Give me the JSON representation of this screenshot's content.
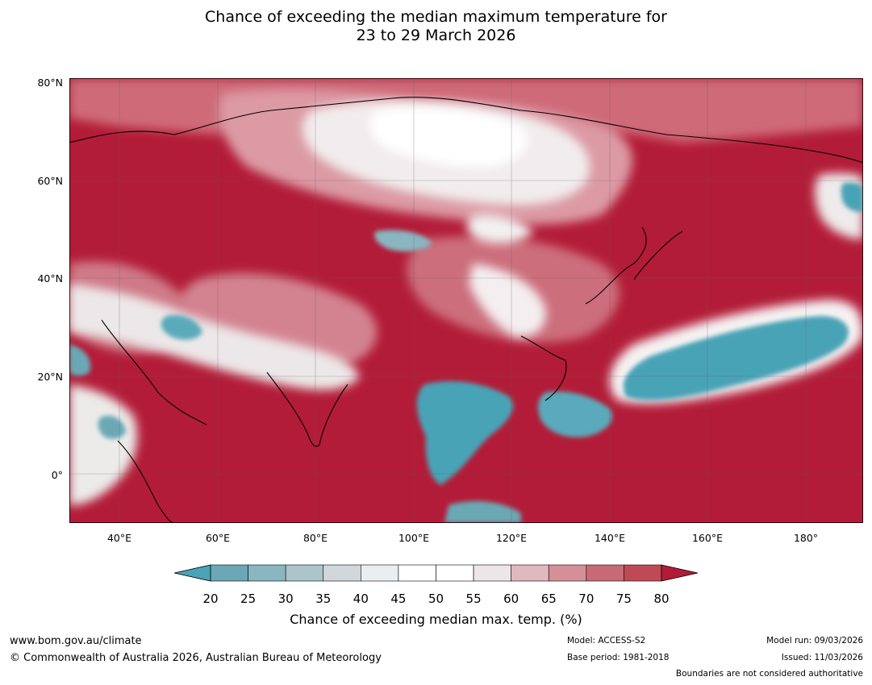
{
  "title": {
    "line1": "Chance of exceeding the median maximum temperature for",
    "line2": "23 to 29 March 2026"
  },
  "map": {
    "lat_labels": [
      "80°N",
      "60°N",
      "40°N",
      "20°N",
      "0°"
    ],
    "lon_labels": [
      "40°E",
      "60°E",
      "80°E",
      "100°E",
      "120°E",
      "140°E",
      "160°E",
      "180°"
    ],
    "extent": {
      "lon_min": 30,
      "lon_max": 191,
      "lat_min": -10,
      "lat_max": 81
    }
  },
  "colorbar": {
    "ticks": [
      "20",
      "25",
      "30",
      "35",
      "40",
      "45",
      "50",
      "55",
      "60",
      "65",
      "70",
      "75",
      "80"
    ],
    "low_color": "#4aa3b6",
    "high_color": "#b31c38",
    "colors": [
      "#6ba8b5",
      "#89b6c1",
      "#acc5cb",
      "#d1d7da",
      "#e9eff1",
      "#ffffff",
      "#ffffff",
      "#ece6e8",
      "#e1b8be",
      "#d68f98",
      "#c86a75",
      "#bf4a56"
    ],
    "label": "Chance of exceeding median max. temp. (%)"
  },
  "footer": {
    "website": "www.bom.gov.au/climate",
    "copyright": "© Commonwealth of Australia 2026, Australian Bureau of Meteorology",
    "model": "Model: ACCESS-S2",
    "base_period": "Base period: 1981-2018",
    "model_run": "Model run: 09/03/2026",
    "issued": "Issued: 11/03/2026",
    "disclaimer": "Boundaries are not considered authoritative"
  }
}
